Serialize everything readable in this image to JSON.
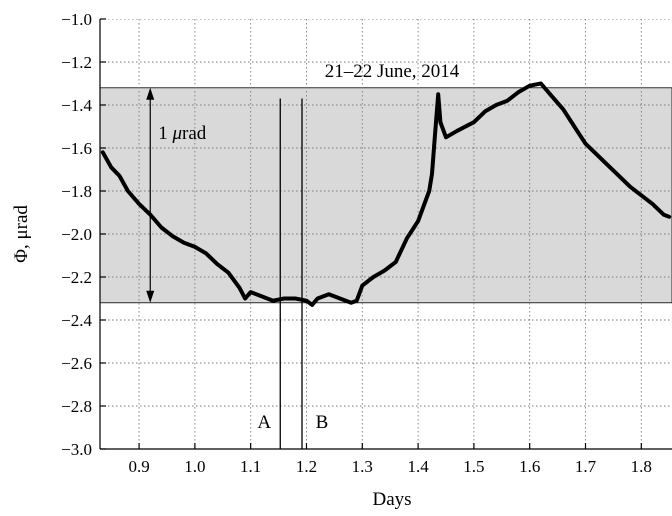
{
  "chart_data": {
    "type": "line",
    "title": "21–22 June, 2014",
    "xlabel": "Days",
    "ylabel": "Φ, μrad",
    "xlim": [
      0.83,
      1.855
    ],
    "ylim": [
      -3.0,
      -1.0
    ],
    "x_ticks": [
      0.9,
      1.0,
      1.1,
      1.2,
      1.3,
      1.4,
      1.5,
      1.6,
      1.7,
      1.8
    ],
    "x_tick_labels": [
      "0.9",
      "1.0",
      "1.1",
      "1.2",
      "1.3",
      "1.4",
      "1.5",
      "1.6",
      "1.7",
      "1.8"
    ],
    "y_ticks": [
      -1.0,
      -1.2,
      -1.4,
      -1.6,
      -1.8,
      -2.0,
      -2.2,
      -2.4,
      -2.6,
      -2.8,
      -3.0
    ],
    "y_tick_labels": [
      "−1.0",
      "−1.2",
      "−1.4",
      "−1.6",
      "−1.8",
      "−2.0",
      "−2.2",
      "−2.4",
      "−2.6",
      "−2.8",
      "−3.0"
    ],
    "grid": true,
    "band": {
      "y_from": -2.32,
      "y_to": -1.32,
      "color": "#d9d9d9"
    },
    "range_arrow": {
      "x": 0.92,
      "y_from": -2.32,
      "y_to": -1.32,
      "label_prefix": "1 ",
      "label_mu": "μ",
      "label_suffix": "rad"
    },
    "vertical_lines": [
      {
        "label": "A",
        "x": 1.153,
        "y_top": -1.37
      },
      {
        "label": "B",
        "x": 1.192,
        "y_top": -1.37
      }
    ],
    "series": [
      {
        "color": "#000000",
        "x": [
          0.835,
          0.85,
          0.865,
          0.88,
          0.9,
          0.92,
          0.94,
          0.96,
          0.98,
          1.0,
          1.02,
          1.04,
          1.06,
          1.08,
          1.09,
          1.1,
          1.12,
          1.14,
          1.16,
          1.18,
          1.2,
          1.21,
          1.22,
          1.24,
          1.26,
          1.28,
          1.29,
          1.3,
          1.32,
          1.34,
          1.36,
          1.38,
          1.4,
          1.42,
          1.425,
          1.43,
          1.436,
          1.44,
          1.45,
          1.47,
          1.5,
          1.52,
          1.54,
          1.56,
          1.58,
          1.6,
          1.62,
          1.64,
          1.66,
          1.68,
          1.7,
          1.72,
          1.74,
          1.76,
          1.78,
          1.8,
          1.82,
          1.84,
          1.85
        ],
        "y": [
          -1.62,
          -1.69,
          -1.73,
          -1.8,
          -1.86,
          -1.91,
          -1.97,
          -2.01,
          -2.04,
          -2.06,
          -2.09,
          -2.14,
          -2.18,
          -2.25,
          -2.3,
          -2.27,
          -2.29,
          -2.31,
          -2.3,
          -2.3,
          -2.31,
          -2.33,
          -2.3,
          -2.28,
          -2.3,
          -2.32,
          -2.31,
          -2.24,
          -2.2,
          -2.17,
          -2.13,
          -2.02,
          -1.94,
          -1.8,
          -1.72,
          -1.55,
          -1.35,
          -1.48,
          -1.55,
          -1.52,
          -1.48,
          -1.43,
          -1.4,
          -1.38,
          -1.34,
          -1.31,
          -1.3,
          -1.36,
          -1.42,
          -1.5,
          -1.58,
          -1.63,
          -1.68,
          -1.73,
          -1.78,
          -1.82,
          -1.86,
          -1.91,
          -1.92
        ]
      }
    ]
  }
}
